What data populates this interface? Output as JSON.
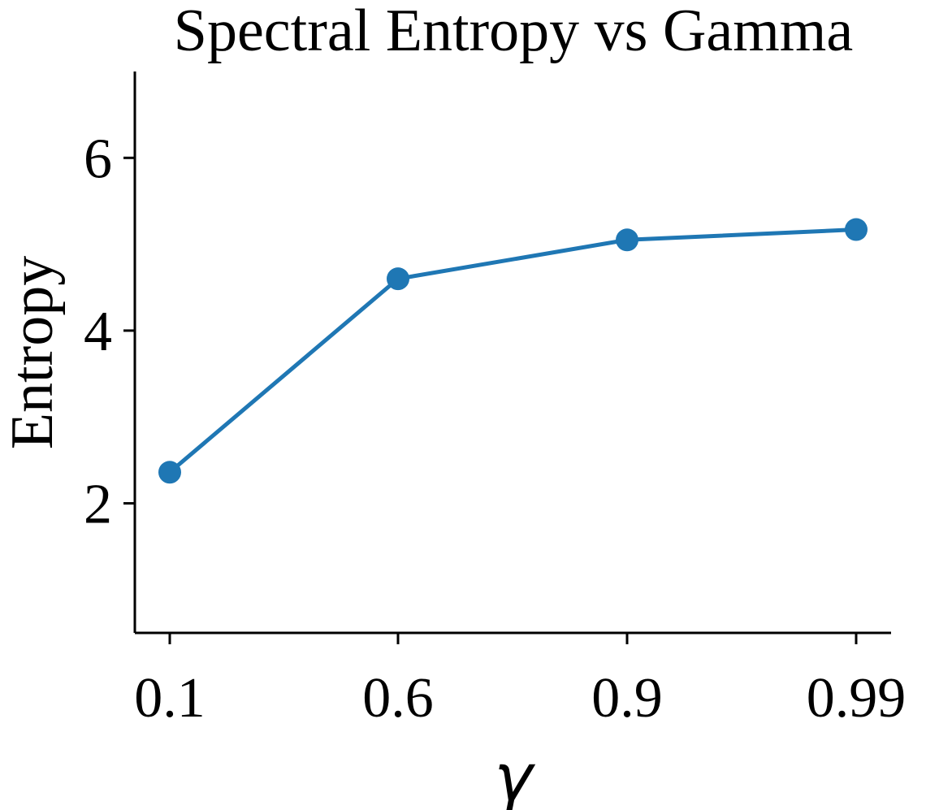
{
  "chart_data": {
    "type": "line",
    "title": "Spectral Entropy vs Gamma",
    "xlabel": "γ",
    "ylabel": "Entropy",
    "categories": [
      "0.1",
      "0.6",
      "0.9",
      "0.99"
    ],
    "series": [
      {
        "values": [
          2.36,
          4.6,
          5.05,
          5.17
        ],
        "color": "#1f77b4"
      }
    ],
    "ylim": [
      0.5,
      7.0
    ],
    "yticks": [
      2,
      4,
      6
    ],
    "grid": false,
    "legend": "none"
  }
}
